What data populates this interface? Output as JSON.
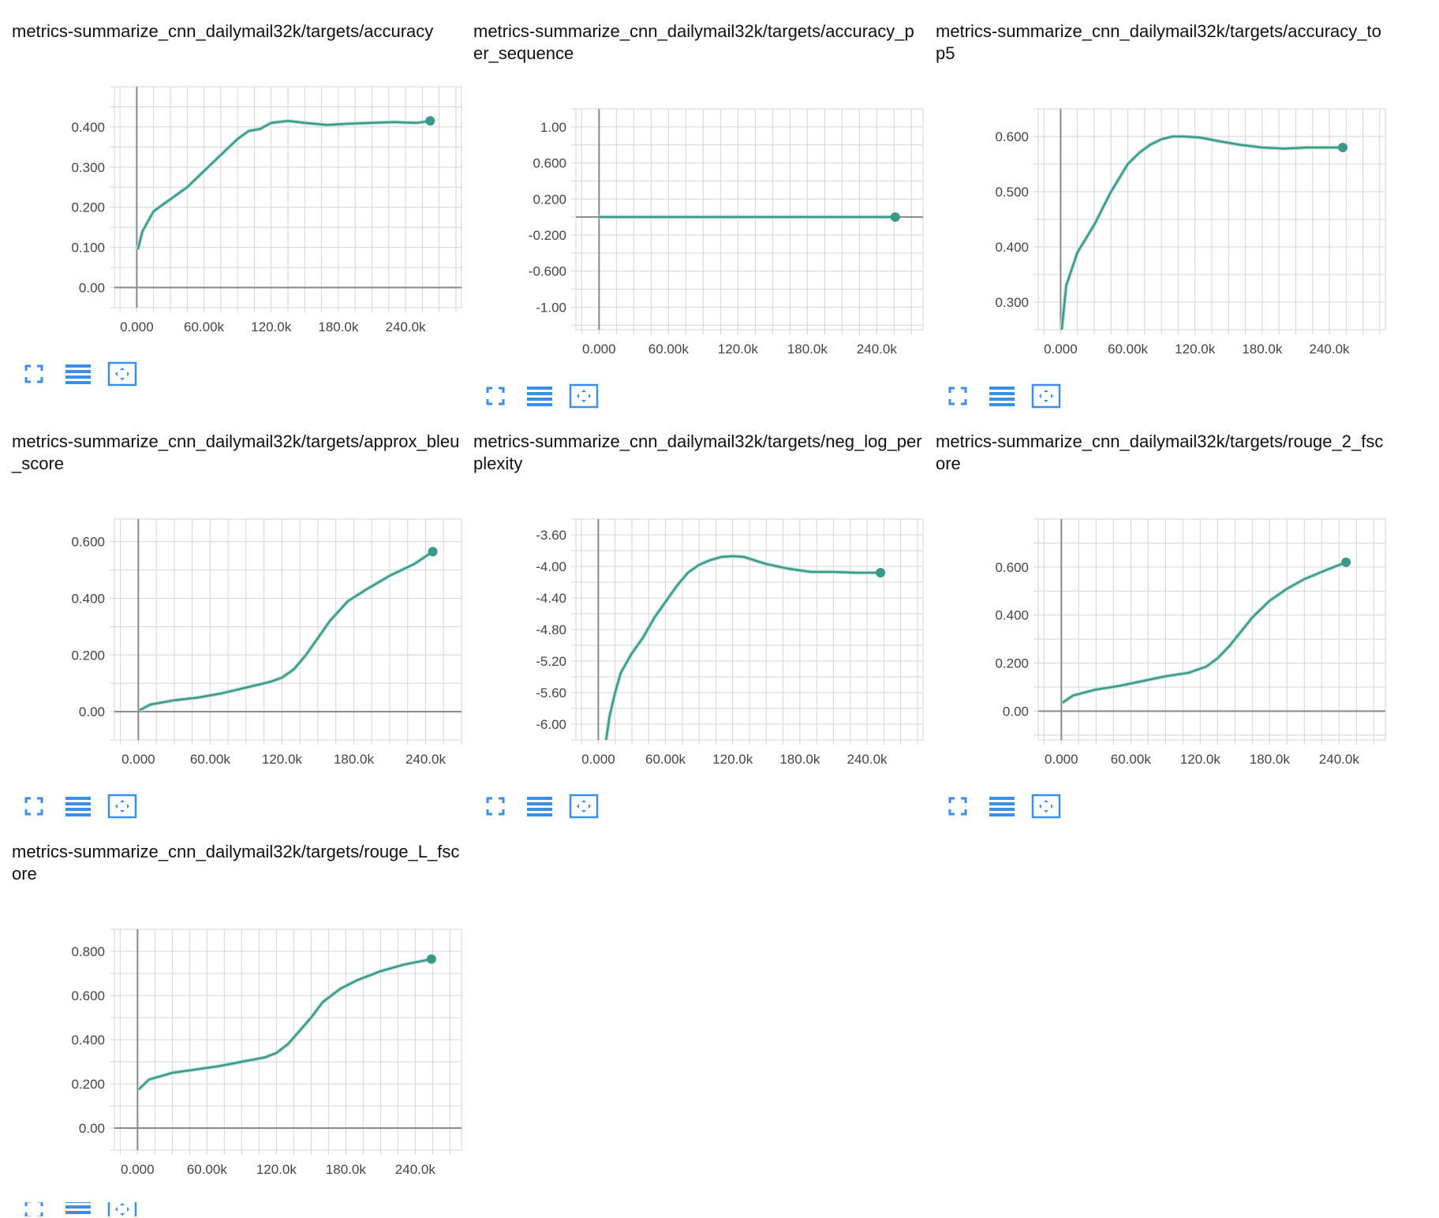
{
  "colors": {
    "line": "#3a9a8a",
    "smooth_shadow": "#bfe0d9",
    "grid": "#d4d4d4",
    "axis": "#888888",
    "button": "#3b8fe6"
  },
  "buttons": {
    "fullscreen_icon": "fullscreen-icon",
    "lines_icon": "lines-icon",
    "fit_icon": "fit-domain-icon"
  },
  "chart_data": [
    {
      "type": "line",
      "title": "metrics-summarize_cnn_dailymail32k/targets/accuracy",
      "xlim": [
        -20000,
        290000
      ],
      "ylim": [
        -0.05,
        0.5
      ],
      "xticks": [
        0,
        60000,
        120000,
        180000,
        240000
      ],
      "xtick_labels": [
        "0.000",
        "60.00k",
        "120.0k",
        "180.0k",
        "240.0k"
      ],
      "yticks": [
        0,
        0.1,
        0.2,
        0.3,
        0.4
      ],
      "ytick_labels": [
        "0.00",
        "0.100",
        "0.200",
        "0.300",
        "0.400"
      ],
      "x": [
        1000,
        5000,
        15000,
        30000,
        45000,
        60000,
        75000,
        90000,
        100000,
        110000,
        120000,
        135000,
        150000,
        170000,
        190000,
        210000,
        230000,
        250000,
        262000
      ],
      "y": [
        0.095,
        0.14,
        0.19,
        0.22,
        0.25,
        0.29,
        0.33,
        0.37,
        0.39,
        0.395,
        0.41,
        0.415,
        0.41,
        0.405,
        0.408,
        0.41,
        0.412,
        0.41,
        0.415
      ]
    },
    {
      "type": "line",
      "title": "metrics-summarize_cnn_dailymail32k/targets/accuracy_per_sequence",
      "xlim": [
        -20000,
        280000
      ],
      "ylim": [
        -1.25,
        1.2
      ],
      "xticks": [
        0,
        60000,
        120000,
        180000,
        240000
      ],
      "xtick_labels": [
        "0.000",
        "60.00k",
        "120.0k",
        "180.0k",
        "240.0k"
      ],
      "yticks": [
        1,
        0.6,
        0.2,
        -0.2,
        -0.6,
        -1
      ],
      "ytick_labels": [
        "1.00",
        "0.600",
        "0.200",
        "-0.200",
        "-0.600",
        "-1.00"
      ],
      "x": [
        0,
        256000
      ],
      "y": [
        0,
        0
      ]
    },
    {
      "type": "line",
      "title": "metrics-summarize_cnn_dailymail32k/targets/accuracy_top5",
      "xlim": [
        -20000,
        290000
      ],
      "ylim": [
        0.25,
        0.65
      ],
      "xticks": [
        0,
        60000,
        120000,
        180000,
        240000
      ],
      "xtick_labels": [
        "0.000",
        "60.00k",
        "120.0k",
        "180.0k",
        "240.0k"
      ],
      "yticks": [
        0.3,
        0.4,
        0.5,
        0.6
      ],
      "ytick_labels": [
        "0.300",
        "0.400",
        "0.500",
        "0.600"
      ],
      "x": [
        1000,
        5000,
        15000,
        30000,
        45000,
        60000,
        70000,
        80000,
        90000,
        100000,
        110000,
        125000,
        140000,
        160000,
        180000,
        200000,
        220000,
        240000,
        252000
      ],
      "y": [
        0.25,
        0.33,
        0.39,
        0.44,
        0.5,
        0.55,
        0.57,
        0.585,
        0.595,
        0.6,
        0.6,
        0.598,
        0.592,
        0.585,
        0.58,
        0.578,
        0.58,
        0.58,
        0.58
      ]
    },
    {
      "type": "line",
      "title": "metrics-summarize_cnn_dailymail32k/targets/approx_bleu_score",
      "xlim": [
        -20000,
        270000
      ],
      "ylim": [
        -0.1,
        0.68
      ],
      "xticks": [
        0,
        60000,
        120000,
        180000,
        240000
      ],
      "xtick_labels": [
        "0.000",
        "60.00k",
        "120.0k",
        "180.0k",
        "240.0k"
      ],
      "yticks": [
        0,
        0.2,
        0.4,
        0.6
      ],
      "ytick_labels": [
        "0.00",
        "0.200",
        "0.400",
        "0.600"
      ],
      "x": [
        1000,
        10000,
        30000,
        50000,
        70000,
        90000,
        110000,
        120000,
        130000,
        140000,
        150000,
        160000,
        175000,
        190000,
        210000,
        230000,
        246000
      ],
      "y": [
        0.005,
        0.025,
        0.04,
        0.05,
        0.065,
        0.085,
        0.105,
        0.12,
        0.15,
        0.2,
        0.26,
        0.32,
        0.39,
        0.43,
        0.48,
        0.52,
        0.565
      ]
    },
    {
      "type": "line",
      "title": "metrics-summarize_cnn_dailymail32k/targets/neg_log_perplexity",
      "xlim": [
        -20000,
        290000
      ],
      "ylim": [
        -6.2,
        -3.4
      ],
      "xticks": [
        0,
        60000,
        120000,
        180000,
        240000
      ],
      "xtick_labels": [
        "0.000",
        "60.00k",
        "120.0k",
        "180.0k",
        "240.0k"
      ],
      "yticks": [
        -3.6,
        -4.0,
        -4.4,
        -4.8,
        -5.2,
        -5.6,
        -6.0
      ],
      "ytick_labels": [
        "-3.60",
        "-4.00",
        "-4.40",
        "-4.80",
        "-5.20",
        "-5.60",
        "-6.00"
      ],
      "x": [
        7000,
        10000,
        15000,
        20000,
        30000,
        40000,
        50000,
        60000,
        70000,
        80000,
        90000,
        100000,
        110000,
        120000,
        130000,
        150000,
        170000,
        190000,
        210000,
        230000,
        252000
      ],
      "y": [
        -6.2,
        -5.9,
        -5.6,
        -5.35,
        -5.1,
        -4.9,
        -4.65,
        -4.45,
        -4.25,
        -4.08,
        -3.98,
        -3.92,
        -3.88,
        -3.87,
        -3.88,
        -3.97,
        -4.03,
        -4.07,
        -4.07,
        -4.08,
        -4.08
      ]
    },
    {
      "type": "line",
      "title": "metrics-summarize_cnn_dailymail32k/targets/rouge_2_fscore",
      "xlim": [
        -20000,
        280000
      ],
      "ylim": [
        -0.12,
        0.8
      ],
      "xticks": [
        0,
        60000,
        120000,
        180000,
        240000
      ],
      "xtick_labels": [
        "0.000",
        "60.00k",
        "120.0k",
        "180.0k",
        "240.0k"
      ],
      "yticks": [
        0,
        0.2,
        0.4,
        0.6
      ],
      "ytick_labels": [
        "0.00",
        "0.200",
        "0.400",
        "0.600"
      ],
      "x": [
        1000,
        10000,
        30000,
        50000,
        70000,
        90000,
        110000,
        125000,
        135000,
        145000,
        155000,
        165000,
        180000,
        195000,
        210000,
        230000,
        246000
      ],
      "y": [
        0.035,
        0.065,
        0.09,
        0.105,
        0.125,
        0.145,
        0.16,
        0.185,
        0.22,
        0.27,
        0.33,
        0.39,
        0.46,
        0.51,
        0.55,
        0.59,
        0.62
      ]
    },
    {
      "type": "line",
      "title": "metrics-summarize_cnn_dailymail32k/targets/rouge_L_fscore",
      "xlim": [
        -20000,
        280000
      ],
      "ylim": [
        -0.1,
        0.9
      ],
      "xticks": [
        0,
        60000,
        120000,
        180000,
        240000
      ],
      "xtick_labels": [
        "0.000",
        "60.00k",
        "120.0k",
        "180.0k",
        "240.0k"
      ],
      "yticks": [
        0,
        0.2,
        0.4,
        0.6,
        0.8
      ],
      "ytick_labels": [
        "0.00",
        "0.200",
        "0.400",
        "0.600",
        "0.800"
      ],
      "x": [
        1000,
        10000,
        30000,
        50000,
        70000,
        90000,
        110000,
        120000,
        130000,
        140000,
        150000,
        160000,
        175000,
        190000,
        210000,
        230000,
        254000
      ],
      "y": [
        0.175,
        0.22,
        0.25,
        0.265,
        0.28,
        0.3,
        0.32,
        0.34,
        0.38,
        0.44,
        0.5,
        0.57,
        0.63,
        0.67,
        0.71,
        0.74,
        0.765
      ]
    }
  ]
}
